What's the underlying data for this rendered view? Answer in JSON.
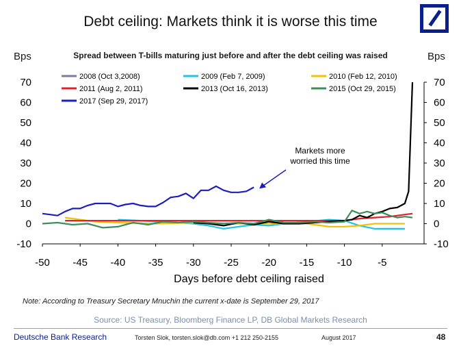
{
  "header": {
    "title": "Debt ceiling: Markets think it is worse this time",
    "left_unit": "Bps",
    "right_unit": "Bps"
  },
  "logo": {
    "name": "deutsche-bank-logo"
  },
  "chart_data": {
    "type": "line",
    "title": "Spread between T-bills maturing just before and after the debt ceiling was raised",
    "xlabel": "Days before debt ceiling raised",
    "ylabel": "Bps",
    "xlim": [
      -50,
      0
    ],
    "ylim": [
      -10,
      70
    ],
    "x_ticks": [
      -50,
      -45,
      -40,
      -35,
      -30,
      -25,
      -20,
      -15,
      -10,
      -5
    ],
    "y_ticks": [
      -10,
      0,
      10,
      20,
      30,
      40,
      50,
      60,
      70
    ],
    "legend_position": "top-left",
    "annotation": {
      "text_lines": [
        "Markets more",
        "worried this time"
      ],
      "arrow_to": [
        -22,
        18
      ]
    },
    "series": [
      {
        "name": "2008 (Oct 3,2008)",
        "color": "#7b7b9e",
        "x": [
          -40,
          -35,
          -30,
          -25,
          -20,
          -15,
          -10
        ],
        "y": [
          1.5,
          1.5,
          1.5,
          1.5,
          1.5,
          1.5,
          1.5
        ]
      },
      {
        "name": "2009 (Feb 7, 2009)",
        "color": "#22c3e6",
        "x": [
          -40,
          -37,
          -35,
          -32,
          -30,
          -28,
          -26,
          -24,
          -22,
          -20,
          -18,
          -15,
          -12,
          -10,
          -8,
          -6,
          -4,
          -2
        ],
        "y": [
          2,
          1.5,
          1,
          0.5,
          0,
          -1,
          -2.5,
          -1.5,
          -0.5,
          -1,
          0,
          1,
          2,
          1.5,
          -1,
          -2.5,
          -2.5,
          -2.5
        ]
      },
      {
        "name": "2010 (Feb 12, 2010)",
        "color": "#f2c200",
        "x": [
          -47,
          -45,
          -43,
          -40,
          -35,
          -30,
          -25,
          -20,
          -15,
          -12,
          -10,
          -8,
          -6,
          -4,
          -2
        ],
        "y": [
          3,
          2,
          1,
          0.5,
          0,
          0.5,
          0,
          0,
          0,
          -1.5,
          -1.5,
          -1,
          0,
          0,
          0
        ]
      },
      {
        "name": "2011 (Aug 2, 2011)",
        "color": "#e0202c",
        "x": [
          -47,
          -45,
          -40,
          -35,
          -30,
          -25,
          -20,
          -15,
          -10,
          -8,
          -6,
          -4,
          -2,
          -1
        ],
        "y": [
          1.5,
          1.5,
          1.5,
          1.5,
          1.5,
          1.5,
          1.5,
          1.5,
          1.5,
          2.5,
          3,
          3.5,
          4.5,
          5
        ]
      },
      {
        "name": "2013 (Oct 16, 2013)",
        "color": "#000000",
        "x": [
          -30,
          -28,
          -26,
          -24,
          -22,
          -20,
          -18,
          -16,
          -14,
          -12,
          -10,
          -9,
          -8,
          -7,
          -6,
          -5,
          -4,
          -3,
          -2,
          -1.5,
          -1
        ],
        "y": [
          0.5,
          0,
          -1,
          0.5,
          -0.5,
          1,
          0,
          0,
          0.5,
          1,
          1.5,
          2,
          4,
          3,
          5,
          6,
          7.5,
          8,
          10,
          16,
          70
        ]
      },
      {
        "name": "2015 (Oct 29, 2015)",
        "color": "#3f8c5a",
        "x": [
          -50,
          -48,
          -46,
          -44,
          -42,
          -40,
          -38,
          -36,
          -34,
          -32,
          -30,
          -28,
          -26,
          -24,
          -22,
          -20,
          -18,
          -16,
          -14,
          -12,
          -10,
          -9,
          -8,
          -7,
          -6,
          -5,
          -4,
          -3,
          -2,
          -1
        ],
        "y": [
          0,
          0.5,
          -0.5,
          0,
          -2,
          -1.5,
          0.5,
          -0.5,
          1,
          0.5,
          1,
          0.5,
          0,
          0.5,
          0,
          2,
          0.5,
          0.5,
          1,
          0.5,
          1,
          6.5,
          5,
          6,
          5,
          5.5,
          4,
          3,
          3.5,
          3
        ]
      },
      {
        "name": "2017 (Sep 29, 2017)",
        "color": "#1a1ebe",
        "x": [
          -50,
          -49,
          -48,
          -47,
          -46,
          -45,
          -44,
          -43,
          -42,
          -41,
          -40,
          -39,
          -38,
          -37,
          -36,
          -35,
          -34,
          -33,
          -32,
          -31,
          -30,
          -29,
          -28,
          -27,
          -26,
          -25,
          -24,
          -23,
          -22
        ],
        "y": [
          5,
          4.5,
          4,
          6,
          7.5,
          7.5,
          9,
          10,
          10,
          10,
          8.5,
          9.5,
          10,
          9,
          8.5,
          8.5,
          10.5,
          13,
          13.5,
          15,
          12.5,
          16.5,
          16.5,
          18.5,
          16.5,
          15.5,
          15.5,
          16,
          18
        ]
      }
    ]
  },
  "note": "Note: According to Treasury Secretary Mnuchin the current x-date is September 29, 2017",
  "source": "Source: US Treasury, Bloomberg Finance LP, DB Global Markets Research",
  "footer": {
    "brand": "Deutsche Bank Research",
    "author": "Torsten Slok, torsten.slok@db.com +1 212 250-2155",
    "date": "August 2017",
    "page": "48"
  }
}
